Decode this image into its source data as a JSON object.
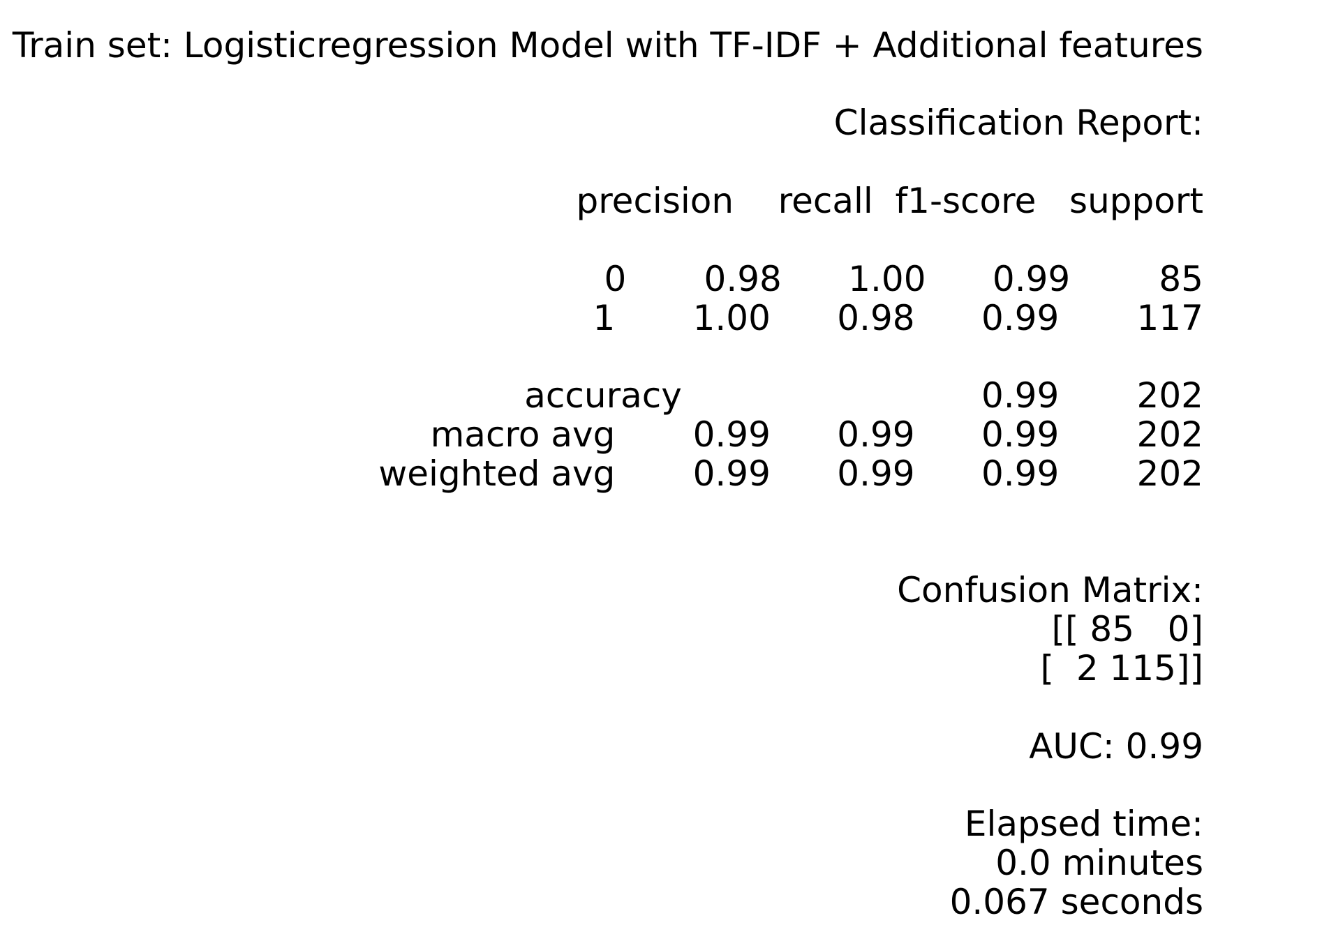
{
  "title": "Train set: Logisticregression Model with TF-IDF + Additional features",
  "classification_report": {
    "heading": "Classification Report:",
    "header_line": "precision    recall  f1-score   support",
    "rows": [
      "0       0.98      1.00      0.99        85",
      "1       1.00      0.98      0.99       117",
      "accuracy                           0.99       202",
      "macro avg       0.99      0.99      0.99       202",
      "weighted avg       0.99      0.99      0.99       202"
    ]
  },
  "confusion_matrix": {
    "heading": "Confusion Matrix:",
    "rows": [
      "[[ 85   0]",
      "[  2 115]]"
    ]
  },
  "auc": "AUC: 0.99",
  "elapsed": {
    "heading": "Elapsed time:",
    "minutes": "0.0 minutes",
    "seconds": "0.067 seconds"
  }
}
